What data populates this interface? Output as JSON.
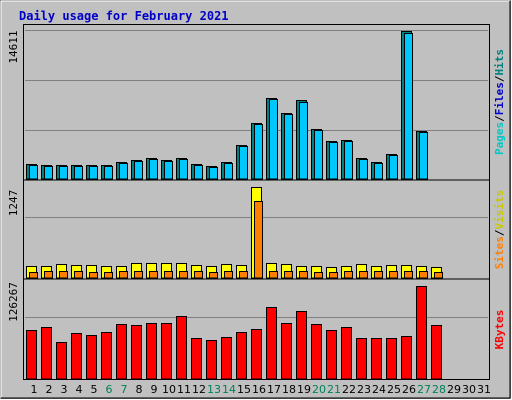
{
  "chart_data": {
    "type": "bar",
    "title": "Daily usage for February 2021",
    "categories": [
      "1",
      "2",
      "3",
      "4",
      "5",
      "6",
      "7",
      "8",
      "9",
      "10",
      "11",
      "12",
      "13",
      "14",
      "15",
      "16",
      "17",
      "18",
      "19",
      "20",
      "21",
      "22",
      "23",
      "24",
      "25",
      "26",
      "27",
      "28",
      "29",
      "30",
      "31"
    ],
    "weekend_days": [
      "6",
      "7",
      "13",
      "14",
      "20",
      "21",
      "27",
      "28"
    ],
    "panels": [
      {
        "id": "hits",
        "max_label": "14611",
        "ylim": [
          0,
          14611
        ],
        "legend": [
          {
            "text": "Pages",
            "color": "#00c8c8"
          },
          {
            "text": "/",
            "color": "#000000"
          },
          {
            "text": "Files",
            "color": "#0000c8"
          },
          {
            "text": "/",
            "color": "#000000"
          },
          {
            "text": "Hits",
            "color": "#008080"
          }
        ],
        "series": [
          {
            "role": "Hits",
            "color": "#008080",
            "values": [
              1500,
              1400,
              1350,
              1400,
              1350,
              1400,
              1650,
              1900,
              2050,
              1900,
              2100,
              1450,
              1300,
              1700,
              3350,
              5550,
              7950,
              6550,
              7750,
              4950,
              3800,
              3850,
              2050,
              1650,
              2450,
              14611,
              4750,
              null,
              null,
              null,
              null
            ]
          },
          {
            "role": "Files",
            "color": "#00c8ff",
            "values": [
              1400,
              1300,
              1250,
              1300,
              1250,
              1300,
              1550,
              1800,
              1950,
              1800,
              2000,
              1350,
              1200,
              1600,
              3250,
              5450,
              7850,
              6450,
              7650,
              4850,
              3700,
              3750,
              1950,
              1550,
              2350,
              14450,
              4650,
              null,
              null,
              null,
              null
            ]
          }
        ]
      },
      {
        "id": "visits",
        "max_label": "1247",
        "ylim": [
          0,
          1247
        ],
        "legend": [
          {
            "text": "Sites",
            "color": "#ff8000"
          },
          {
            "text": "/",
            "color": "#000000"
          },
          {
            "text": "Visits",
            "color": "#c8c800"
          }
        ],
        "series": [
          {
            "role": "Visits",
            "color": "#ffff00",
            "values": [
              160,
              160,
              190,
              180,
              180,
              160,
              160,
              200,
              210,
              200,
              210,
              180,
              160,
              190,
              180,
              1247,
              200,
              190,
              170,
              160,
              150,
              170,
              190,
              170,
              180,
              180,
              170,
              150,
              null,
              null,
              null
            ]
          },
          {
            "role": "Sites",
            "color": "#ff8000",
            "values": [
              80,
              90,
              90,
              90,
              80,
              80,
              90,
              90,
              100,
              90,
              100,
              90,
              80,
              90,
              90,
              1050,
              100,
              90,
              90,
              80,
              80,
              90,
              90,
              90,
              90,
              90,
              90,
              80,
              null,
              null,
              null
            ]
          }
        ]
      },
      {
        "id": "kbytes",
        "max_label": "126267",
        "ylim": [
          0,
          126267
        ],
        "legend": [
          {
            "text": "KBytes",
            "color": "#ff0000"
          }
        ],
        "series": [
          {
            "role": "KBytes",
            "color": "#ff0000",
            "values": [
              67000,
              70000,
              50000,
              63000,
              60000,
              64000,
              75000,
              73000,
              76000,
              76000,
              86000,
              56000,
              53000,
              57000,
              64000,
              68000,
              98000,
              76000,
              92000,
              75000,
              66000,
              70000,
              56000,
              56000,
              56000,
              58000,
              126267,
              73000,
              null,
              null,
              null
            ]
          }
        ]
      }
    ]
  }
}
